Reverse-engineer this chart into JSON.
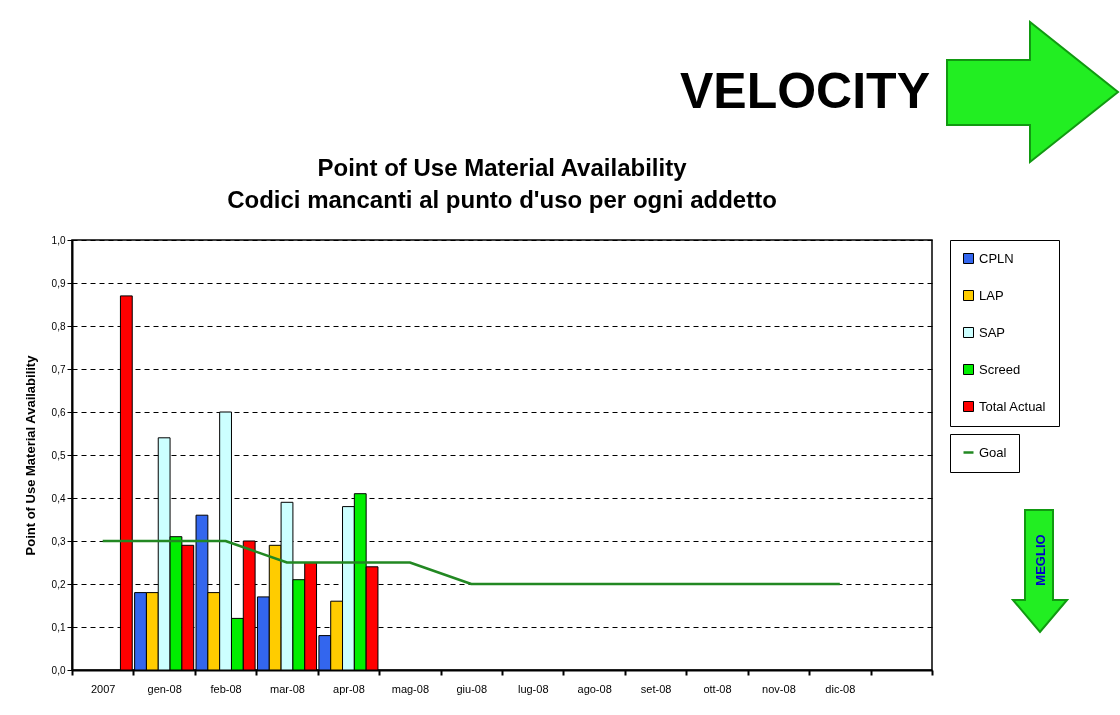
{
  "chart_data": {
    "type": "bar",
    "title": "Point of Use Material Availability",
    "subtitle": "Codici mancanti al punto d'uso per ogni addetto",
    "ylabel": "Point of Use Material Availability",
    "annotations": [
      "VELOCITY",
      "MEGLIO"
    ],
    "categories": [
      "2007",
      "gen-08",
      "feb-08",
      "mar-08",
      "apr-08",
      "mag-08",
      "giu-08",
      "lug-08",
      "ago-08",
      "set-08",
      "ott-08",
      "nov-08",
      "dic-08",
      null
    ],
    "series": [
      {
        "name": "CPLN",
        "color": "#3366ee",
        "values": [
          null,
          0.18,
          0.36,
          0.17,
          0.08,
          null,
          null,
          null,
          null,
          null,
          null,
          null,
          null,
          null
        ]
      },
      {
        "name": "LAP",
        "color": "#ffcc00",
        "values": [
          null,
          0.18,
          0.18,
          0.29,
          0.16,
          null,
          null,
          null,
          null,
          null,
          null,
          null,
          null,
          null
        ]
      },
      {
        "name": "SAP",
        "color": "#ccffff",
        "values": [
          null,
          0.54,
          0.6,
          0.39,
          0.38,
          null,
          null,
          null,
          null,
          null,
          null,
          null,
          null,
          null
        ]
      },
      {
        "name": "Screed",
        "color": "#00ee00",
        "values": [
          null,
          0.31,
          0.12,
          0.21,
          0.41,
          null,
          null,
          null,
          null,
          null,
          null,
          null,
          null,
          null
        ]
      },
      {
        "name": "Total Actual",
        "color": "#ff0000",
        "values": [
          0.87,
          0.29,
          0.3,
          0.25,
          0.24,
          null,
          null,
          null,
          null,
          null,
          null,
          null,
          null,
          null
        ]
      },
      {
        "name": "Goal",
        "type": "line",
        "color": "#228822",
        "values": [
          0.3,
          0.3,
          0.3,
          0.25,
          0.25,
          0.25,
          0.2,
          0.2,
          0.2,
          0.2,
          0.2,
          0.2,
          0.2,
          null
        ]
      }
    ],
    "ylim": [
      0,
      1
    ],
    "yticks": [
      {
        "value": 0,
        "label": "0,0"
      },
      {
        "value": 0.1,
        "label": "0,1"
      },
      {
        "value": 0.2,
        "label": "0,2"
      },
      {
        "value": 0.3,
        "label": "0,3"
      },
      {
        "value": 0.4,
        "label": "0,4"
      },
      {
        "value": 0.5,
        "label": "0,5"
      },
      {
        "value": 0.6,
        "label": "0,6"
      },
      {
        "value": 0.7,
        "label": "0,7"
      },
      {
        "value": 0.8,
        "label": "0,8"
      },
      {
        "value": 0.9,
        "label": "0,9"
      },
      {
        "value": 1,
        "label": "1,0"
      }
    ],
    "grid": "y",
    "legend": "top right"
  }
}
